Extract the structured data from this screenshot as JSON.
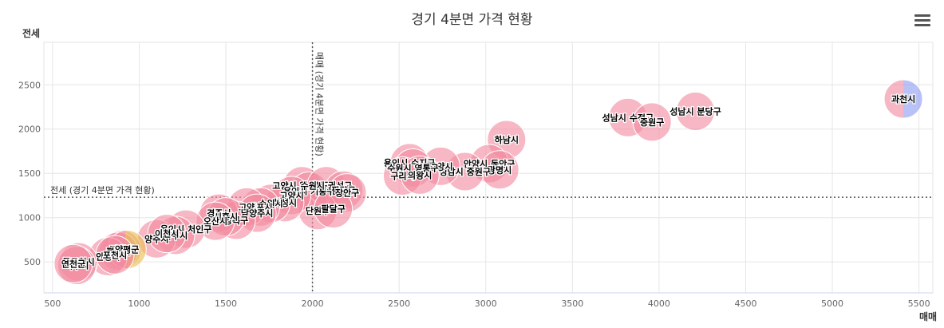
{
  "chart_data": {
    "type": "scatter",
    "title": "경기 4분면 가격 현황",
    "xlabel": "매매",
    "ylabel": "전세",
    "xlim": [
      450,
      5580
    ],
    "ylim": [
      150,
      2980
    ],
    "x_ticks": [
      500,
      1000,
      1500,
      2000,
      2500,
      3000,
      3500,
      4000,
      4500,
      5000,
      5500
    ],
    "y_ticks": [
      500,
      1000,
      1500,
      2000,
      2500
    ],
    "grid": true,
    "legend": "none",
    "colors": {
      "bubble_pink": "#f28aa0",
      "bubble_blue": "#8e9cf2",
      "bubble_gold": "#e8c050",
      "grid": "#e6e6e6",
      "axis": "#ccd6eb",
      "reference_line": "#555555"
    },
    "reference_lines": [
      {
        "axis": "x",
        "value": 2000,
        "label": "매매 (경기 4분면 가격 현황)"
      },
      {
        "axis": "y",
        "value": 1230,
        "label": "전세 (경기 4분면 가격 현황)"
      }
    ],
    "points": [
      {
        "label": "과천시",
        "x": 5410,
        "y": 2340,
        "color": "split"
      },
      {
        "label": "성남시 분당구",
        "x": 4210,
        "y": 2200
      },
      {
        "label": "성남시 수정구",
        "x": 3820,
        "y": 2130
      },
      {
        "label": "중원구",
        "x": 3960,
        "y": 2080
      },
      {
        "label": "하남시",
        "x": 3120,
        "y": 1880
      },
      {
        "label": "안양시 동안구",
        "x": 3020,
        "y": 1610
      },
      {
        "label": "광명시",
        "x": 3080,
        "y": 1540
      },
      {
        "label": "성남시 중원구",
        "x": 2880,
        "y": 1520
      },
      {
        "label": "안양시",
        "x": 2740,
        "y": 1580
      },
      {
        "label": "용인시 수지구",
        "x": 2560,
        "y": 1620
      },
      {
        "label": "수원시 영통구",
        "x": 2580,
        "y": 1560
      },
      {
        "label": "구리시",
        "x": 2520,
        "y": 1470
      },
      {
        "label": "의왕시",
        "x": 2620,
        "y": 1480
      },
      {
        "label": "고양시 일산동구",
        "x": 1940,
        "y": 1360
      },
      {
        "label": "용인시 기흥구",
        "x": 1980,
        "y": 1300
      },
      {
        "label": "수원시 권선구",
        "x": 2080,
        "y": 1360
      },
      {
        "label": "팔달구",
        "x": 2180,
        "y": 1310
      },
      {
        "label": "장안구",
        "x": 2200,
        "y": 1280
      },
      {
        "label": "단원구",
        "x": 2030,
        "y": 1080
      },
      {
        "label": "팔달구",
        "x": 2120,
        "y": 1100
      },
      {
        "label": "고양시",
        "x": 1880,
        "y": 1250
      },
      {
        "label": "화성시",
        "x": 1840,
        "y": 1170
      },
      {
        "label": "수원시",
        "x": 1760,
        "y": 1160
      },
      {
        "label": "김포시",
        "x": 1700,
        "y": 1120
      },
      {
        "label": "고양",
        "x": 1620,
        "y": 1120
      },
      {
        "label": "남양주시",
        "x": 1680,
        "y": 1050
      },
      {
        "label": "상록구",
        "x": 1560,
        "y": 970
      },
      {
        "label": "경주시",
        "x": 1460,
        "y": 1050
      },
      {
        "label": "시흥시",
        "x": 1500,
        "y": 1010
      },
      {
        "label": "오산시",
        "x": 1440,
        "y": 960
      },
      {
        "label": "용인시 처인구",
        "x": 1270,
        "y": 870
      },
      {
        "label": "파주시",
        "x": 1210,
        "y": 800
      },
      {
        "label": "양주시",
        "x": 1100,
        "y": 760
      },
      {
        "label": "이천시",
        "x": 1160,
        "y": 820
      },
      {
        "label": "평택시",
        "x": 900,
        "y": 640
      },
      {
        "label": "평택시",
        "x": 880,
        "y": 620
      },
      {
        "label": "양평군",
        "x": 930,
        "y": 640,
        "color": "gold"
      },
      {
        "label": "안성시",
        "x": 820,
        "y": 560
      },
      {
        "label": "포천시",
        "x": 860,
        "y": 580
      },
      {
        "label": "동두천시",
        "x": 650,
        "y": 500
      },
      {
        "label": "여주시",
        "x": 640,
        "y": 460
      },
      {
        "label": "연천군",
        "x": 620,
        "y": 480
      }
    ]
  }
}
